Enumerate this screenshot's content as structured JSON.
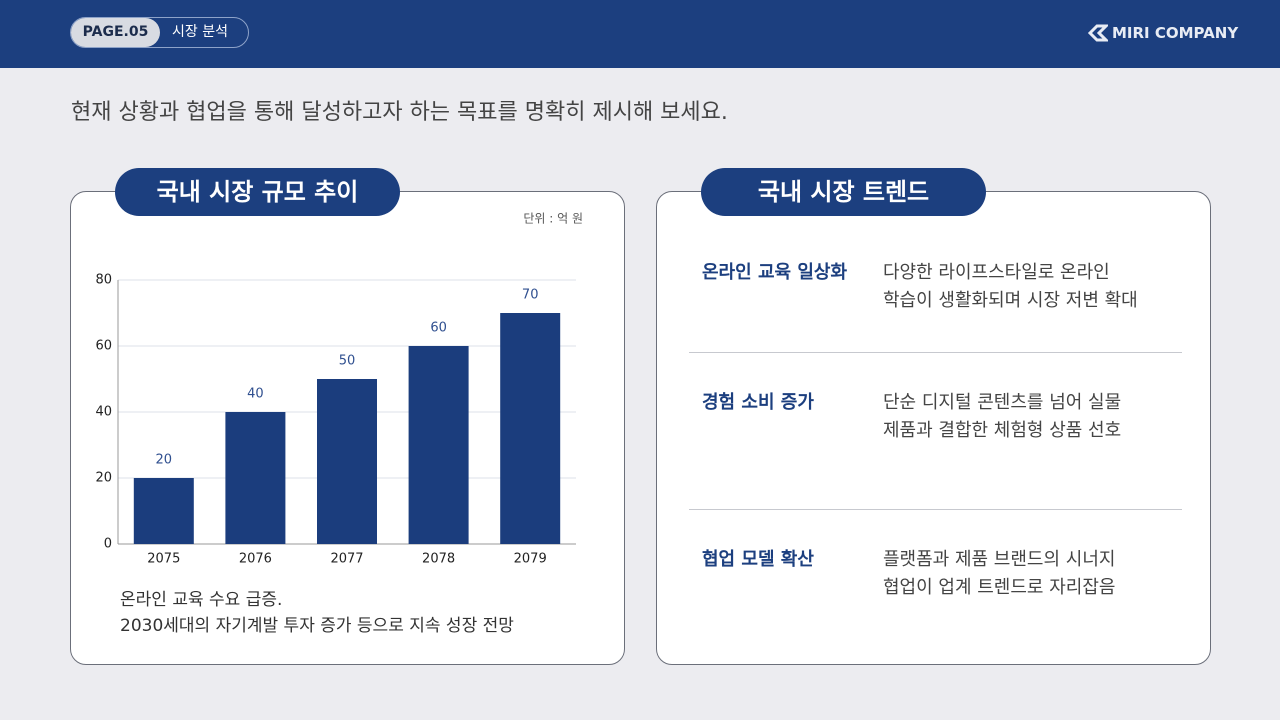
{
  "header": {
    "page": "PAGE.05",
    "section": "시장 분석",
    "logo": "MIRI COMPANY"
  },
  "subtitle": "현재 상황과 협업을 통해 달성하고자 하는 목표를 명확히 제시해 보세요.",
  "left": {
    "tab": "국내 시장 규모 추이",
    "caption": [
      "온라인 교육 수요 급증.",
      "2030세대의 자기계발 투자 증가 등으로 지속 성장 전망"
    ]
  },
  "chart_data": {
    "type": "bar",
    "unit": "단위 : 억 원",
    "categories": [
      "2075",
      "2076",
      "2077",
      "2078",
      "2079"
    ],
    "values": [
      20,
      40,
      50,
      60,
      70
    ],
    "color": "#1b3d7d",
    "ylim": [
      0,
      80
    ],
    "yticks": [
      0,
      20,
      40,
      60,
      80
    ],
    "grid": true
  },
  "right": {
    "tab": "국내 시장 트렌드",
    "items": [
      {
        "title": "온라인 교육 일상화",
        "lines": [
          "다양한 라이프스타일로 온라인",
          "학습이 생활화되며 시장 저변 확대"
        ]
      },
      {
        "title": "경험 소비 증가",
        "lines": [
          "단순 디지털 콘텐츠를 넘어 실물",
          "제품과 결합한 체험형 상품 선호"
        ]
      },
      {
        "title": "협업 모델 확산",
        "lines": [
          "플랫폼과 제품 브랜드의 시너지",
          "협업이 업계 트렌드로 자리잡음"
        ]
      }
    ]
  }
}
